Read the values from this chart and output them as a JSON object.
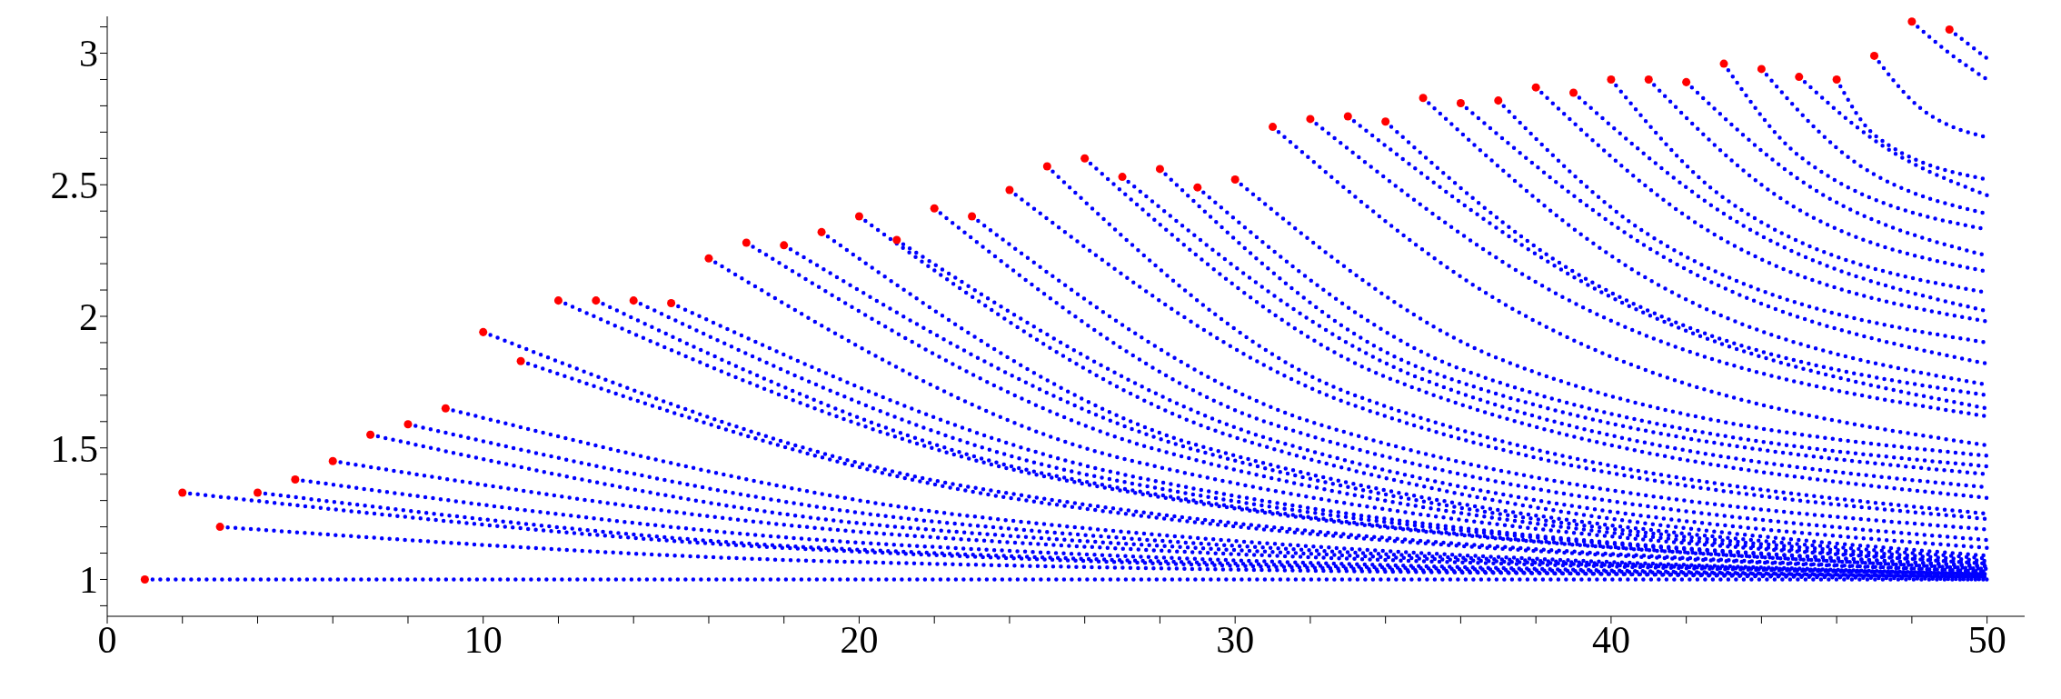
{
  "chart_data": {
    "type": "line",
    "xlim": [
      0,
      51
    ],
    "ylim": [
      0.86,
      3.14
    ],
    "xticks": [
      0,
      {
        "value": 2,
        "label": null
      },
      {
        "value": 4,
        "label": null
      },
      {
        "value": 6,
        "label": null
      },
      {
        "value": 8,
        "label": null
      },
      10,
      {
        "value": 12,
        "label": null
      },
      {
        "value": 14,
        "label": null
      },
      {
        "value": 16,
        "label": null
      },
      {
        "value": 18,
        "label": null
      },
      20,
      {
        "value": 22,
        "label": null
      },
      {
        "value": 24,
        "label": null
      },
      {
        "value": 26,
        "label": null
      },
      {
        "value": 28,
        "label": null
      },
      30,
      {
        "value": 32,
        "label": null
      },
      {
        "value": 34,
        "label": null
      },
      {
        "value": 36,
        "label": null
      },
      {
        "value": 38,
        "label": null
      },
      40,
      {
        "value": 42,
        "label": null
      },
      {
        "value": 44,
        "label": null
      },
      {
        "value": 46,
        "label": null
      },
      {
        "value": 48,
        "label": null
      },
      50
    ],
    "yticks": [
      {
        "value": 0.9,
        "label": null
      },
      1,
      {
        "value": 1.1,
        "label": null
      },
      {
        "value": 1.2,
        "label": null
      },
      {
        "value": 1.3,
        "label": null
      },
      {
        "value": 1.4,
        "label": null
      },
      1.5,
      {
        "value": 1.6,
        "label": null
      },
      {
        "value": 1.7,
        "label": null
      },
      {
        "value": 1.8,
        "label": null
      },
      {
        "value": 1.9,
        "label": null
      },
      2,
      {
        "value": 2.1,
        "label": null
      },
      {
        "value": 2.2,
        "label": null
      },
      {
        "value": 2.3,
        "label": null
      },
      {
        "value": 2.4,
        "label": null
      },
      2.5,
      {
        "value": 2.6,
        "label": null
      },
      {
        "value": 2.7,
        "label": null
      },
      {
        "value": 2.8,
        "label": null
      },
      {
        "value": 2.9,
        "label": null
      },
      3,
      {
        "value": 3.1,
        "label": null
      }
    ],
    "series": [
      {
        "color": "#0000ff",
        "line_style": "dotted",
        "x": [
          1,
          17,
          50
        ],
        "values": [
          1.0,
          1.0,
          1.0
        ]
      },
      {
        "color": "#0000ff",
        "line_style": "dotted",
        "x": [
          2,
          18,
          50
        ],
        "values": [
          1.33,
          1.12,
          1.0
        ]
      },
      {
        "color": "#0000ff",
        "line_style": "dotted",
        "x": [
          3,
          19,
          50
        ],
        "values": [
          1.2,
          1.07,
          1.01
        ]
      },
      {
        "color": "#0000ff",
        "line_style": "dotted",
        "x": [
          4,
          19,
          50
        ],
        "values": [
          1.33,
          1.12,
          1.01
        ]
      },
      {
        "color": "#0000ff",
        "line_style": "dotted",
        "x": [
          5,
          20,
          50
        ],
        "values": [
          1.38,
          1.14,
          1.01
        ]
      },
      {
        "color": "#0000ff",
        "line_style": "dotted",
        "x": [
          6,
          21,
          50
        ],
        "values": [
          1.45,
          1.17,
          1.02
        ]
      },
      {
        "color": "#0000ff",
        "line_style": "dotted",
        "x": [
          7,
          21,
          50
        ],
        "values": [
          1.55,
          1.2,
          1.02
        ]
      },
      {
        "color": "#0000ff",
        "line_style": "dotted",
        "x": [
          8,
          22,
          50
        ],
        "values": [
          1.59,
          1.22,
          1.02
        ]
      },
      {
        "color": "#0000ff",
        "line_style": "dotted",
        "x": [
          9,
          23,
          50
        ],
        "values": [
          1.65,
          1.24,
          1.02
        ]
      },
      {
        "color": "#0000ff",
        "line_style": "dotted",
        "x": [
          10,
          23,
          50
        ],
        "values": [
          1.94,
          1.35,
          1.03
        ]
      },
      {
        "color": "#0000ff",
        "line_style": "dotted",
        "x": [
          11,
          24,
          50
        ],
        "values": [
          1.83,
          1.31,
          1.03
        ]
      },
      {
        "color": "#0000ff",
        "line_style": "dotted",
        "x": [
          12,
          25,
          50
        ],
        "values": [
          2.06,
          1.39,
          1.04
        ]
      },
      {
        "color": "#0000ff",
        "line_style": "dotted",
        "x": [
          13,
          25,
          50
        ],
        "values": [
          2.06,
          1.4,
          1.04
        ]
      },
      {
        "color": "#0000ff",
        "line_style": "dotted",
        "x": [
          14,
          26,
          50
        ],
        "values": [
          2.06,
          1.4,
          1.05
        ]
      },
      {
        "color": "#0000ff",
        "line_style": "dotted",
        "x": [
          15,
          27,
          50
        ],
        "values": [
          2.05,
          1.4,
          1.05
        ]
      },
      {
        "color": "#0000ff",
        "line_style": "dotted",
        "x": [
          16,
          27,
          50
        ],
        "values": [
          2.22,
          1.46,
          1.06
        ]
      },
      {
        "color": "#0000ff",
        "line_style": "dotted",
        "x": [
          17,
          28,
          50
        ],
        "values": [
          2.28,
          1.49,
          1.06
        ]
      },
      {
        "color": "#0000ff",
        "line_style": "dotted",
        "x": [
          18,
          29,
          50
        ],
        "values": [
          2.27,
          1.49,
          1.07
        ]
      },
      {
        "color": "#0000ff",
        "line_style": "dotted",
        "x": [
          19,
          29,
          50
        ],
        "values": [
          2.32,
          1.51,
          1.08
        ]
      },
      {
        "color": "#0000ff",
        "line_style": "dotted",
        "x": [
          20,
          30,
          50
        ],
        "values": [
          2.38,
          1.54,
          1.09
        ]
      },
      {
        "color": "#0000ff",
        "line_style": "dotted",
        "x": [
          21,
          31,
          50
        ],
        "values": [
          2.29,
          1.53,
          1.12
        ]
      },
      {
        "color": "#0000ff",
        "line_style": "dotted",
        "x": [
          22,
          31,
          50
        ],
        "values": [
          2.41,
          1.59,
          1.15
        ]
      },
      {
        "color": "#0000ff",
        "line_style": "dotted",
        "x": [
          23,
          32,
          50
        ],
        "values": [
          2.38,
          1.6,
          1.19
        ]
      },
      {
        "color": "#0000ff",
        "line_style": "dotted",
        "x": [
          24,
          33,
          50
        ],
        "values": [
          2.48,
          1.67,
          1.23
        ]
      },
      {
        "color": "#0000ff",
        "line_style": "dotted",
        "x": [
          25,
          33,
          50
        ],
        "values": [
          2.57,
          1.71,
          1.25
        ]
      },
      {
        "color": "#0000ff",
        "line_style": "dotted",
        "x": [
          26,
          34,
          50
        ],
        "values": [
          2.6,
          1.77,
          1.31
        ]
      },
      {
        "color": "#0000ff",
        "line_style": "dotted",
        "x": [
          27,
          35,
          50
        ],
        "values": [
          2.53,
          1.76,
          1.35
        ]
      },
      {
        "color": "#0000ff",
        "line_style": "dotted",
        "x": [
          28,
          35,
          50
        ],
        "values": [
          2.56,
          1.8,
          1.4
        ]
      },
      {
        "color": "#0000ff",
        "line_style": "dotted",
        "x": [
          29,
          36,
          50
        ],
        "values": [
          2.49,
          1.8,
          1.43
        ]
      },
      {
        "color": "#0000ff",
        "line_style": "dotted",
        "x": [
          30,
          37,
          50
        ],
        "values": [
          2.52,
          1.84,
          1.47
        ]
      },
      {
        "color": "#0000ff",
        "line_style": "dotted",
        "x": [
          31,
          37,
          50
        ],
        "values": [
          2.72,
          2.06,
          1.51
        ]
      },
      {
        "color": "#0000ff",
        "line_style": "dotted",
        "x": [
          32,
          38,
          50
        ],
        "values": [
          2.75,
          2.13,
          1.62
        ]
      },
      {
        "color": "#0000ff",
        "line_style": "dotted",
        "x": [
          33,
          39,
          50
        ],
        "values": [
          2.76,
          2.15,
          1.65
        ]
      },
      {
        "color": "#0000ff",
        "line_style": "dotted",
        "x": [
          34,
          39,
          50
        ],
        "values": [
          2.74,
          2.17,
          1.7
        ]
      },
      {
        "color": "#0000ff",
        "line_style": "dotted",
        "x": [
          35,
          40,
          50
        ],
        "values": [
          2.83,
          2.23,
          1.74
        ]
      },
      {
        "color": "#0000ff",
        "line_style": "dotted",
        "x": [
          36,
          41,
          50
        ],
        "values": [
          2.81,
          2.26,
          1.82
        ]
      },
      {
        "color": "#0000ff",
        "line_style": "dotted",
        "x": [
          37,
          41,
          50
        ],
        "values": [
          2.82,
          2.31,
          1.9
        ]
      },
      {
        "color": "#0000ff",
        "line_style": "dotted",
        "x": [
          38,
          42,
          50
        ],
        "values": [
          2.87,
          2.38,
          1.98
        ]
      },
      {
        "color": "#0000ff",
        "line_style": "dotted",
        "x": [
          39,
          43,
          50
        ],
        "values": [
          2.85,
          2.39,
          2.02
        ]
      },
      {
        "color": "#0000ff",
        "line_style": "dotted",
        "x": [
          40,
          43,
          50
        ],
        "values": [
          2.9,
          2.45,
          2.09
        ]
      },
      {
        "color": "#0000ff",
        "line_style": "dotted",
        "x": [
          41,
          44,
          50
        ],
        "values": [
          2.9,
          2.5,
          2.17
        ]
      },
      {
        "color": "#0000ff",
        "line_style": "dotted",
        "x": [
          42,
          45,
          50
        ],
        "values": [
          2.89,
          2.52,
          2.23
        ]
      },
      {
        "color": "#0000ff",
        "line_style": "dotted",
        "x": [
          43,
          45,
          50
        ],
        "values": [
          2.96,
          2.61,
          2.33
        ]
      },
      {
        "color": "#0000ff",
        "line_style": "dotted",
        "x": [
          44,
          46,
          50
        ],
        "values": [
          2.94,
          2.64,
          2.39
        ]
      },
      {
        "color": "#0000ff",
        "line_style": "dotted",
        "x": [
          45,
          47,
          50
        ],
        "values": [
          2.91,
          2.67,
          2.46
        ]
      },
      {
        "color": "#0000ff",
        "line_style": "dotted",
        "x": [
          46,
          47,
          50
        ],
        "values": [
          2.9,
          2.69,
          2.52
        ]
      },
      {
        "color": "#0000ff",
        "line_style": "dotted",
        "x": [
          47,
          48,
          50
        ],
        "values": [
          2.99,
          2.82,
          2.68
        ]
      },
      {
        "color": "#0000ff",
        "line_style": "dotted",
        "x": [
          48,
          49,
          50
        ],
        "values": [
          3.12,
          3.0,
          2.9
        ]
      },
      {
        "color": "#0000ff",
        "line_style": "dotted",
        "x": [
          49,
          50
        ],
        "values": [
          3.09,
          2.98
        ]
      },
      {
        "type": "scatter",
        "color": "#ff0000",
        "marker": "circle",
        "x": [
          1,
          2,
          3,
          4,
          5,
          6,
          7,
          8,
          9,
          10,
          11,
          12,
          13,
          14,
          15,
          16,
          17,
          18,
          19,
          20,
          21,
          22,
          23,
          24,
          25,
          26,
          27,
          28,
          29,
          30,
          31,
          32,
          33,
          34,
          35,
          36,
          37,
          38,
          39,
          40,
          41,
          42,
          43,
          44,
          45,
          46,
          47,
          48,
          49
        ],
        "values": [
          1.0,
          1.33,
          1.2,
          1.33,
          1.38,
          1.45,
          1.55,
          1.59,
          1.65,
          1.94,
          1.83,
          2.06,
          2.06,
          2.06,
          2.05,
          2.22,
          2.28,
          2.27,
          2.32,
          2.38,
          2.29,
          2.41,
          2.38,
          2.48,
          2.57,
          2.6,
          2.53,
          2.56,
          2.49,
          2.52,
          2.72,
          2.75,
          2.76,
          2.74,
          2.83,
          2.81,
          2.82,
          2.87,
          2.85,
          2.9,
          2.9,
          2.89,
          2.96,
          2.94,
          2.91,
          2.9,
          2.99,
          3.12,
          3.09
        ]
      }
    ]
  }
}
